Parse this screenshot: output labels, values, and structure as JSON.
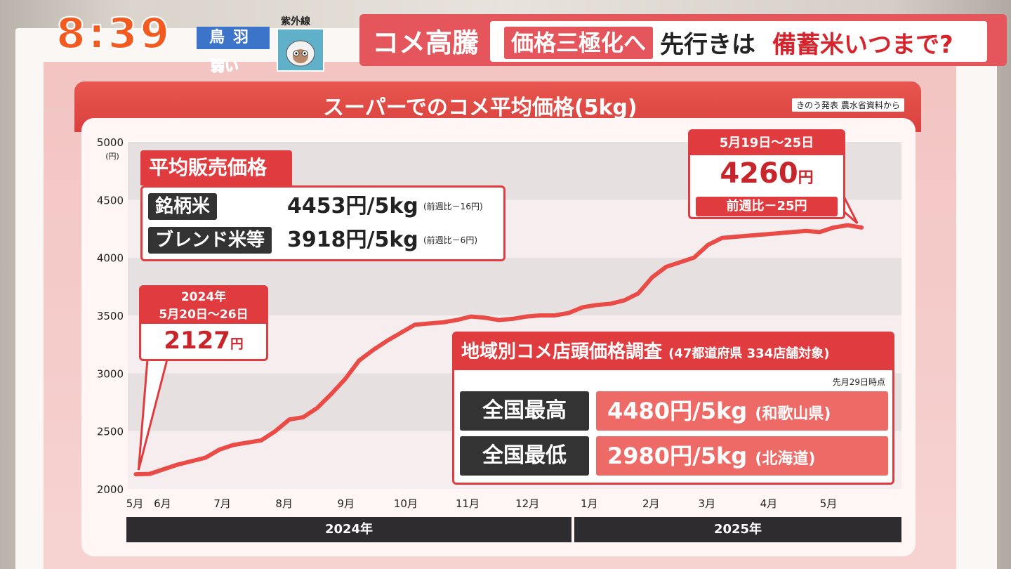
{
  "header": {
    "clock": "8:39",
    "weather_city": "鳥羽",
    "uv_level": "弱い",
    "uv_label": "紫外線",
    "topic": "コメ高騰",
    "tag": "価格三極化へ",
    "mid_text": "先行きは",
    "end_text": "備蓄米いつまで?"
  },
  "panel": {
    "title": "スーパーでのコメ平均価格(5kg)",
    "source": "きのう発表 農水省資料から"
  },
  "avg_box": {
    "heading": "平均販売価格",
    "rows": [
      {
        "label": "銘柄米",
        "price": "4453円/5kg",
        "diff": "(前週比－16円)"
      },
      {
        "label": "ブレンド米等",
        "price": "3918円/5kg",
        "diff": "(前週比－6円)"
      }
    ]
  },
  "start_callout": {
    "year": "2024年",
    "period": "5月20日～26日",
    "value": "2127",
    "unit": "円"
  },
  "end_callout": {
    "period": "5月19日～25日",
    "value": "4260",
    "unit": "円",
    "diff": "前週比－25円"
  },
  "regional": {
    "heading": "地域別コメ店頭価格調査",
    "scope": "(47都道府県 334店舗対象)",
    "as_of": "先月29日時点",
    "rows": [
      {
        "label": "全国最高",
        "price": "4480円/5kg",
        "where": "(和歌山県)"
      },
      {
        "label": "全国最低",
        "price": "2980円/5kg",
        "where": "(北海道)"
      }
    ]
  },
  "years": [
    "2024年",
    "2025年"
  ],
  "colors": {
    "accent": "#e03b3f",
    "line": "#ea4b47",
    "dark": "#2f2c2f"
  },
  "chart_data": {
    "type": "line",
    "title": "スーパーでのコメ平均価格(5kg)",
    "ylabel": "(円)",
    "ylim": [
      2000,
      5000
    ],
    "yticks": [
      2000,
      2500,
      3000,
      3500,
      4000,
      4500,
      5000
    ],
    "month_labels": [
      "5月",
      "6月",
      "7月",
      "8月",
      "9月",
      "10月",
      "11月",
      "12月",
      "1月",
      "2月",
      "3月",
      "4月",
      "5月"
    ],
    "series": [
      {
        "name": "",
        "x": [
          "2024-05-20",
          "2024-05-27",
          "2024-06-03",
          "2024-06-10",
          "2024-06-17",
          "2024-06-24",
          "2024-07-01",
          "2024-07-08",
          "2024-07-15",
          "2024-07-22",
          "2024-07-29",
          "2024-08-05",
          "2024-08-12",
          "2024-08-19",
          "2024-08-26",
          "2024-09-02",
          "2024-09-09",
          "2024-09-16",
          "2024-09-23",
          "2024-09-30",
          "2024-10-07",
          "2024-10-14",
          "2024-10-21",
          "2024-10-28",
          "2024-11-04",
          "2024-11-11",
          "2024-11-18",
          "2024-11-25",
          "2024-12-02",
          "2024-12-09",
          "2024-12-16",
          "2024-12-23",
          "2024-12-30",
          "2025-01-06",
          "2025-01-13",
          "2025-01-20",
          "2025-01-27",
          "2025-02-03",
          "2025-02-10",
          "2025-02-17",
          "2025-02-24",
          "2025-03-03",
          "2025-03-10",
          "2025-03-17",
          "2025-03-24",
          "2025-03-31",
          "2025-04-07",
          "2025-04-14",
          "2025-04-21",
          "2025-04-28",
          "2025-05-05",
          "2025-05-12",
          "2025-05-19"
        ],
        "values": [
          2127,
          2130,
          2170,
          2210,
          2240,
          2270,
          2340,
          2380,
          2400,
          2420,
          2500,
          2600,
          2620,
          2700,
          2820,
          2950,
          3110,
          3200,
          3280,
          3350,
          3420,
          3430,
          3440,
          3460,
          3490,
          3480,
          3460,
          3470,
          3490,
          3500,
          3500,
          3520,
          3570,
          3590,
          3600,
          3630,
          3690,
          3830,
          3920,
          3960,
          4000,
          4110,
          4170,
          4180,
          4190,
          4200,
          4210,
          4220,
          4230,
          4220,
          4260,
          4280,
          4260
        ]
      }
    ]
  }
}
